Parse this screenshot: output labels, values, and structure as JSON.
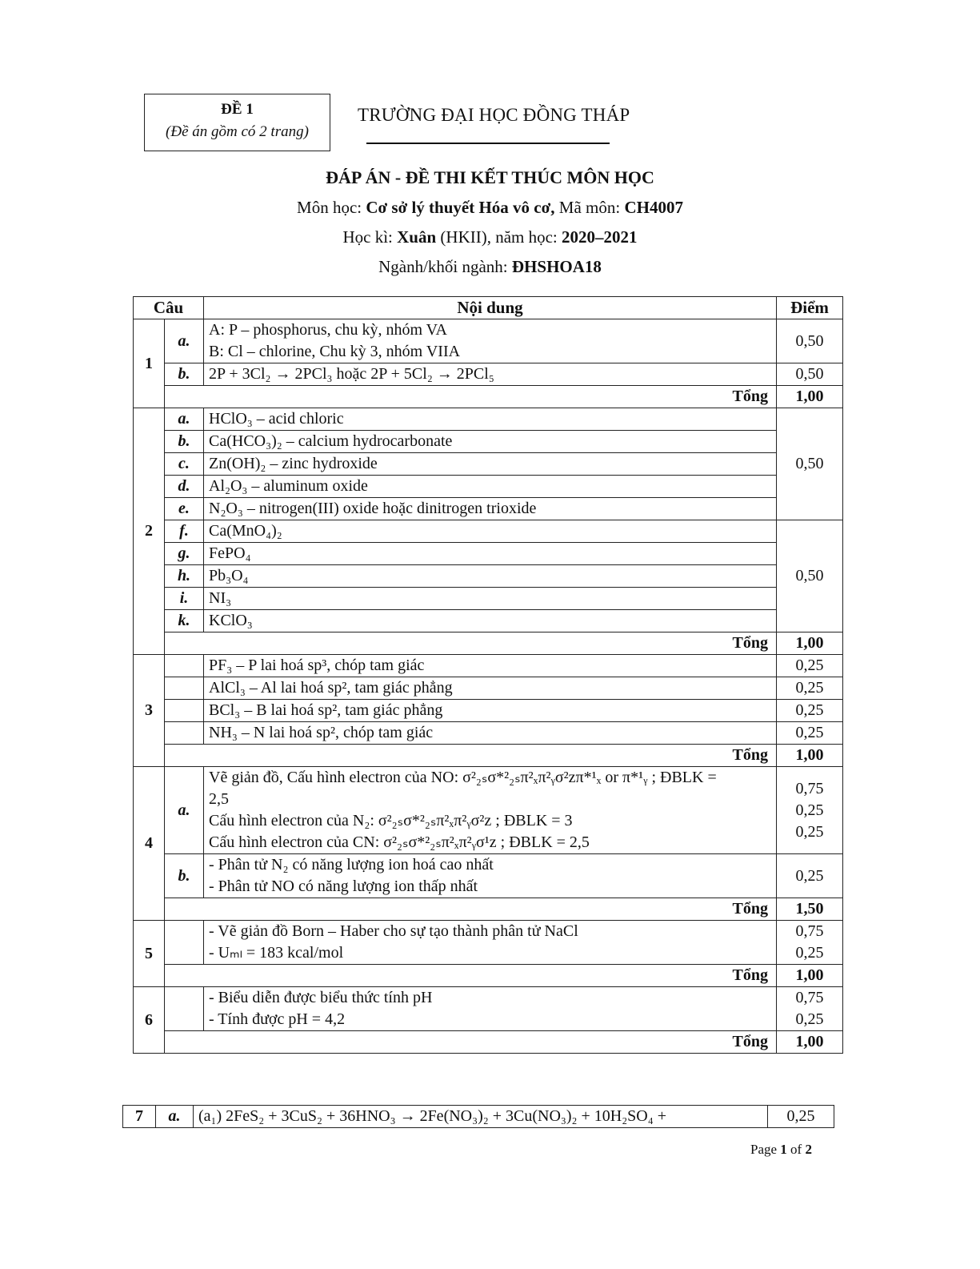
{
  "header": {
    "exam_code": "ĐỀ 1",
    "pages_note": "(Đề án gồm có 2 trang)",
    "school": "TRƯỜNG ĐẠI HỌC ĐỒNG THÁP",
    "title": "ĐÁP ÁN - ĐỀ THI KẾT THÚC MÔN HỌC",
    "subject_label": "Môn học: ",
    "subject": "Cơ sở lý thuyết Hóa vô cơ,",
    "code_label": " Mã môn: ",
    "code": "CH4007",
    "term_label": "Học kì: ",
    "term": "Xuân",
    "term_suffix": " (HKII), năm học: ",
    "year": "2020–2021",
    "major_label": "Ngành/khối ngành: ",
    "major": "ĐHSHOA18"
  },
  "table": {
    "headers": [
      "Câu",
      "Nội dung",
      "Điểm"
    ],
    "questions": [
      {
        "num": "1",
        "parts": [
          {
            "label": "a.",
            "lines": [
              "A: P – phosphorus, chu kỳ, nhóm VA",
              "B: Cl – chlorine, Chu kỳ 3, nhóm VIIA"
            ],
            "scores": [
              "0,50"
            ],
            "span": 1
          },
          {
            "label": "b.",
            "lines": [
              "2P + 3Cl₂ → 2PCl₃ hoặc 2P + 5Cl₂ → 2PCl₅"
            ],
            "scores": [
              "0,50"
            ],
            "span": 1
          }
        ],
        "total_label": "Tổng",
        "total": "1,00"
      },
      {
        "num": "2",
        "parts": [
          {
            "label": "a.",
            "lines": [
              "HClO₃ – acid chloric"
            ],
            "scores": [
              "0,50"
            ],
            "span": 5
          },
          {
            "label": "b.",
            "lines": [
              "Ca(HCO₃)₂ – calcium hydrocarbonate"
            ]
          },
          {
            "label": "c.",
            "lines": [
              "Zn(OH)₂ – zinc hydroxide"
            ]
          },
          {
            "label": "d.",
            "lines": [
              "Al₂O₃ – aluminum oxide"
            ]
          },
          {
            "label": "e.",
            "lines": [
              "N₂O₃ – nitrogen(III) oxide hoặc dinitrogen trioxide"
            ]
          },
          {
            "label": "f.",
            "lines": [
              "Ca(MnO₄)₂"
            ],
            "scores": [
              "0,50"
            ],
            "span": 5
          },
          {
            "label": "g.",
            "lines": [
              "FePO₄"
            ]
          },
          {
            "label": "h.",
            "lines": [
              "Pb₃O₄"
            ]
          },
          {
            "label": "i.",
            "lines": [
              "NI₃"
            ]
          },
          {
            "label": "k.",
            "lines": [
              "KClO₃"
            ]
          }
        ],
        "total_label": "Tổng",
        "total": "1,00"
      },
      {
        "num": "3",
        "parts": [
          {
            "label": "",
            "lines": [
              "PF₃ – P lai hoá sp³, chóp tam giác"
            ],
            "scores": [
              "0,25"
            ],
            "span": 1
          },
          {
            "label": "",
            "lines": [
              "AlCl₃ – Al lai hoá sp², tam giác phẳng"
            ],
            "scores": [
              "0,25"
            ],
            "span": 1
          },
          {
            "label": "",
            "lines": [
              "BCl₃ – B lai hoá sp², tam giác phẳng"
            ],
            "scores": [
              "0,25"
            ],
            "span": 1
          },
          {
            "label": "",
            "lines": [
              "NH₃ – N lai hoá sp², chóp tam giác"
            ],
            "scores": [
              "0,25"
            ],
            "span": 1
          }
        ],
        "total_label": "Tổng",
        "total": "1,00"
      },
      {
        "num": "4",
        "parts": [
          {
            "label": "a.",
            "lines": [
              "Vẽ giản đồ, Cấu hình electron của NO: σ²₂ₛσ*²₂ₛπ²ₓπ²ᵧσ²zπ*¹ₓ or π*¹ᵧ ; ĐBLK =",
              "2,5",
              "Cấu hình electron của N₂: σ²₂ₛσ*²₂ₛπ²ₓπ²ᵧσ²z ; ĐBLK = 3",
              "Cấu hình electron của CN: σ²₂ₛσ*²₂ₛπ²ₓπ²ᵧσ¹z ; ĐBLK = 2,5"
            ],
            "scores": [
              "0,75",
              "",
              "0,25",
              "0,25"
            ],
            "span": 1
          },
          {
            "label": "b.",
            "lines": [
              "- Phân tử N₂ có năng lượng ion hoá cao nhất",
              "- Phân tử NO có năng lượng ion thấp nhất"
            ],
            "scores": [
              "0,25"
            ],
            "span": 1
          }
        ],
        "total_label": "Tổng",
        "total": "1,50"
      },
      {
        "num": "5",
        "parts": [
          {
            "label": "",
            "lines": [
              "- Vẽ giản đồ Born – Haber cho sự tạo thành phân tử NaCl",
              "- Uₘₗ = 183 kcal/mol"
            ],
            "scores": [
              "0,75",
              "0,25"
            ],
            "span": 1
          }
        ],
        "total_label": "Tổng",
        "total": "1,00"
      },
      {
        "num": "6",
        "parts": [
          {
            "label": "",
            "lines": [
              "- Biểu diễn được biểu thức tính pH",
              "- Tính được pH = 4,2"
            ],
            "scores": [
              "0,75",
              "0,25"
            ],
            "span": 1
          }
        ],
        "total_label": "Tổng",
        "total": "1,00"
      }
    ],
    "q7": {
      "num": "7",
      "label": "a.",
      "line": "(a₁) 2FeS₂ + 3CuS₂ + 36HNO₃ → 2Fe(NO₃)₂ + 3Cu(NO₃)₂ + 10H₂SO₄ +",
      "score": "0,25"
    }
  },
  "footer": {
    "page_label": "Page ",
    "page": "1",
    "of": " of ",
    "total": "2"
  }
}
